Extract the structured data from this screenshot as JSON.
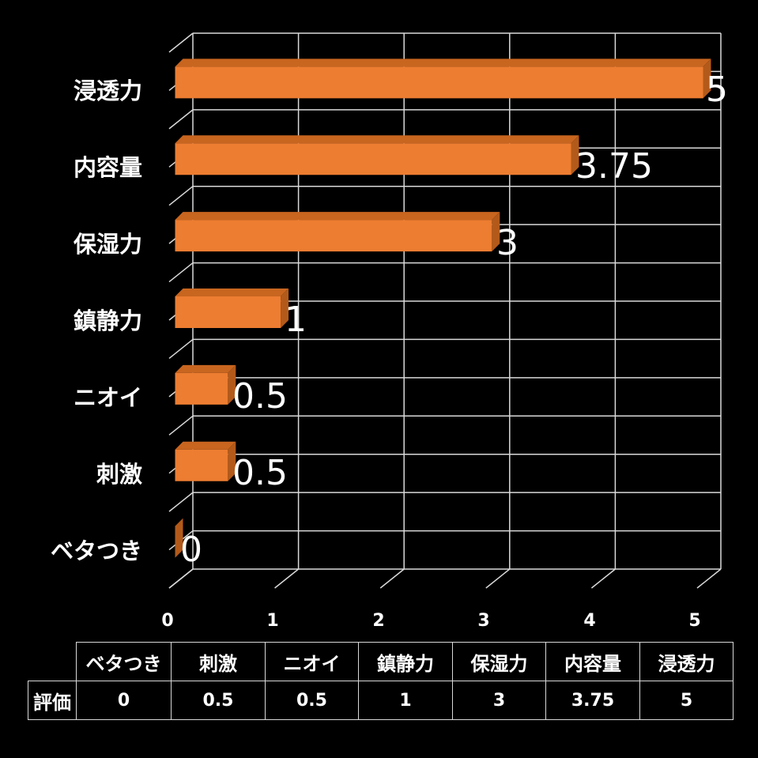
{
  "chart_data": {
    "type": "bar",
    "orientation": "horizontal",
    "style": "3d",
    "title": "",
    "xlabel": "",
    "ylabel": "",
    "categories": [
      "浸透力",
      "内容量",
      "保湿力",
      "鎮静力",
      "ニオイ",
      "刺激",
      "ベタつき"
    ],
    "series": [
      {
        "name": "評価",
        "values": [
          5,
          3.75,
          3,
          1,
          0.5,
          0.5,
          0
        ],
        "color": "#ED7D31"
      }
    ],
    "data_labels": [
      "5",
      "3.75",
      "3",
      "1",
      "0.5",
      "0.5",
      "0"
    ],
    "xlim": [
      0,
      5
    ],
    "x_ticks": [
      "0",
      "1",
      "2",
      "3",
      "4",
      "5"
    ],
    "grid": true,
    "legend": "none",
    "data_table": {
      "row_header": "評価",
      "columns": [
        "ベタつき",
        "刺激",
        "ニオイ",
        "鎮静力",
        "保湿力",
        "内容量",
        "浸透力"
      ],
      "values": [
        "0",
        "0.5",
        "0.5",
        "1",
        "3",
        "3.75",
        "5"
      ]
    }
  },
  "colors": {
    "background": "#000000",
    "bar_front": "#ED7D31",
    "bar_top": "#C8651F",
    "bar_side": "#B35A1A",
    "grid": "#D9D9D9",
    "text": "#FFFFFF"
  }
}
